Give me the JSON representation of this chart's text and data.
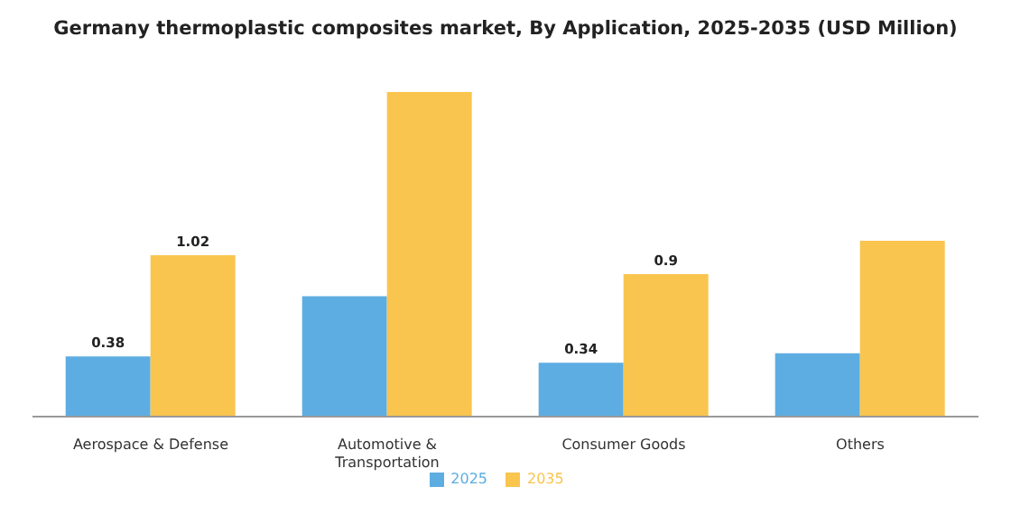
{
  "chart_data": {
    "type": "bar",
    "title": "Germany thermoplastic composites market, By Application, 2025-2035 (USD Million)",
    "categories": [
      "Aerospace & Defense",
      "Automotive & Transportation",
      "Consumer Goods",
      "Others"
    ],
    "series": [
      {
        "name": "2025",
        "color": "#5dade2",
        "values": [
          0.38,
          0.76,
          0.34,
          0.4
        ],
        "value_labels": [
          "0.38",
          null,
          "0.34",
          null
        ]
      },
      {
        "name": "2035",
        "color": "#f9c54e",
        "values": [
          1.02,
          2.05,
          0.9,
          1.11
        ],
        "value_labels": [
          "1.02",
          null,
          "0.9",
          null
        ]
      }
    ],
    "legend": "bottom",
    "grid": false
  }
}
